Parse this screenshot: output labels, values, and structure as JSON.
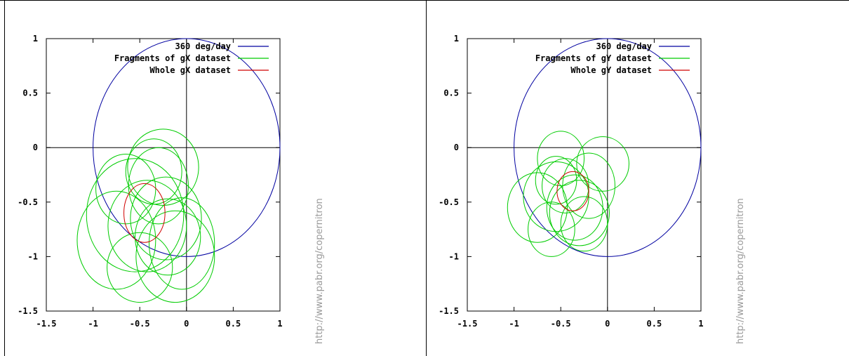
{
  "watermark": "http://www.pabr.org/copernitron",
  "chart_data": [
    {
      "type": "line",
      "title": "",
      "xlabel": "",
      "ylabel": "",
      "xlim": [
        -1.5,
        1
      ],
      "ylim": [
        -1.5,
        1
      ],
      "xticks": [
        "-1.5",
        "-1",
        "-0.5",
        "0",
        "0.5",
        "1"
      ],
      "yticks": [
        "-1.5",
        "-1",
        "-0.5",
        "0",
        "0.5",
        "1"
      ],
      "xtick_values": [
        -1.5,
        -1,
        -0.5,
        0,
        0.5,
        1
      ],
      "ytick_values": [
        -1.5,
        -1,
        -0.5,
        0,
        0.5,
        1
      ],
      "legend_position": "top-right",
      "series": [
        {
          "name": "360 deg/day",
          "color": "#0000a0",
          "circles": [
            {
              "cx": 0,
              "cy": 0,
              "rx": 1,
              "ry": 1
            }
          ]
        },
        {
          "name": "Fragments of gX dataset",
          "color": "#00cc00",
          "circles": [
            {
              "cx": -0.25,
              "cy": -0.18,
              "rx": 0.38,
              "ry": 0.35
            },
            {
              "cx": -0.65,
              "cy": -0.38,
              "rx": 0.32,
              "ry": 0.32
            },
            {
              "cx": -0.55,
              "cy": -0.62,
              "rx": 0.52,
              "ry": 0.52
            },
            {
              "cx": -0.42,
              "cy": -0.72,
              "rx": 0.42,
              "ry": 0.42
            },
            {
              "cx": -0.22,
              "cy": -0.65,
              "rx": 0.38,
              "ry": 0.38
            },
            {
              "cx": -0.2,
              "cy": -0.82,
              "rx": 0.35,
              "ry": 0.35
            },
            {
              "cx": -0.05,
              "cy": -0.88,
              "rx": 0.35,
              "ry": 0.42
            },
            {
              "cx": -0.75,
              "cy": -0.85,
              "rx": 0.42,
              "ry": 0.45
            },
            {
              "cx": -0.12,
              "cy": -1.0,
              "rx": 0.42,
              "ry": 0.42
            },
            {
              "cx": -0.5,
              "cy": -1.1,
              "rx": 0.35,
              "ry": 0.32
            },
            {
              "cx": -0.3,
              "cy": -0.35,
              "rx": 0.32,
              "ry": 0.35
            },
            {
              "cx": -0.35,
              "cy": -0.22,
              "rx": 0.3,
              "ry": 0.3
            }
          ]
        },
        {
          "name": "Whole gX dataset",
          "color": "#d00000",
          "circles": [
            {
              "cx": -0.45,
              "cy": -0.6,
              "rx": 0.22,
              "ry": 0.27
            }
          ]
        }
      ]
    },
    {
      "type": "line",
      "title": "",
      "xlabel": "",
      "ylabel": "",
      "xlim": [
        -1.5,
        1
      ],
      "ylim": [
        -1.5,
        1
      ],
      "xticks": [
        "-1.5",
        "-1",
        "-0.5",
        "0",
        "0.5",
        "1"
      ],
      "yticks": [
        "-1.5",
        "-1",
        "-0.5",
        "0",
        "0.5",
        "1"
      ],
      "xtick_values": [
        -1.5,
        -1,
        -0.5,
        0,
        0.5,
        1
      ],
      "ytick_values": [
        -1.5,
        -1,
        -0.5,
        0,
        0.5,
        1
      ],
      "legend_position": "top-right",
      "series": [
        {
          "name": "360 deg/day",
          "color": "#0000a0",
          "circles": [
            {
              "cx": 0,
              "cy": 0,
              "rx": 1,
              "ry": 1
            }
          ]
        },
        {
          "name": "Fragments of gY dataset",
          "color": "#00cc00",
          "circles": [
            {
              "cx": -0.5,
              "cy": -0.1,
              "rx": 0.25,
              "ry": 0.25
            },
            {
              "cx": -0.55,
              "cy": -0.45,
              "rx": 0.35,
              "ry": 0.32
            },
            {
              "cx": -0.75,
              "cy": -0.55,
              "rx": 0.32,
              "ry": 0.32
            },
            {
              "cx": -0.6,
              "cy": -0.75,
              "rx": 0.25,
              "ry": 0.25
            },
            {
              "cx": -0.35,
              "cy": -0.55,
              "rx": 0.3,
              "ry": 0.3
            },
            {
              "cx": -0.2,
              "cy": -0.35,
              "rx": 0.28,
              "ry": 0.3
            },
            {
              "cx": -0.05,
              "cy": -0.15,
              "rx": 0.28,
              "ry": 0.25
            },
            {
              "cx": -0.3,
              "cy": -0.6,
              "rx": 0.32,
              "ry": 0.3
            },
            {
              "cx": -0.45,
              "cy": -0.35,
              "rx": 0.25,
              "ry": 0.25
            },
            {
              "cx": -0.25,
              "cy": -0.7,
              "rx": 0.25,
              "ry": 0.25
            },
            {
              "cx": -0.55,
              "cy": -0.3,
              "rx": 0.22,
              "ry": 0.22
            }
          ]
        },
        {
          "name": "Whole gY dataset",
          "color": "#d00000",
          "circles": [
            {
              "cx": -0.37,
              "cy": -0.4,
              "rx": 0.17,
              "ry": 0.18
            }
          ]
        }
      ]
    }
  ]
}
